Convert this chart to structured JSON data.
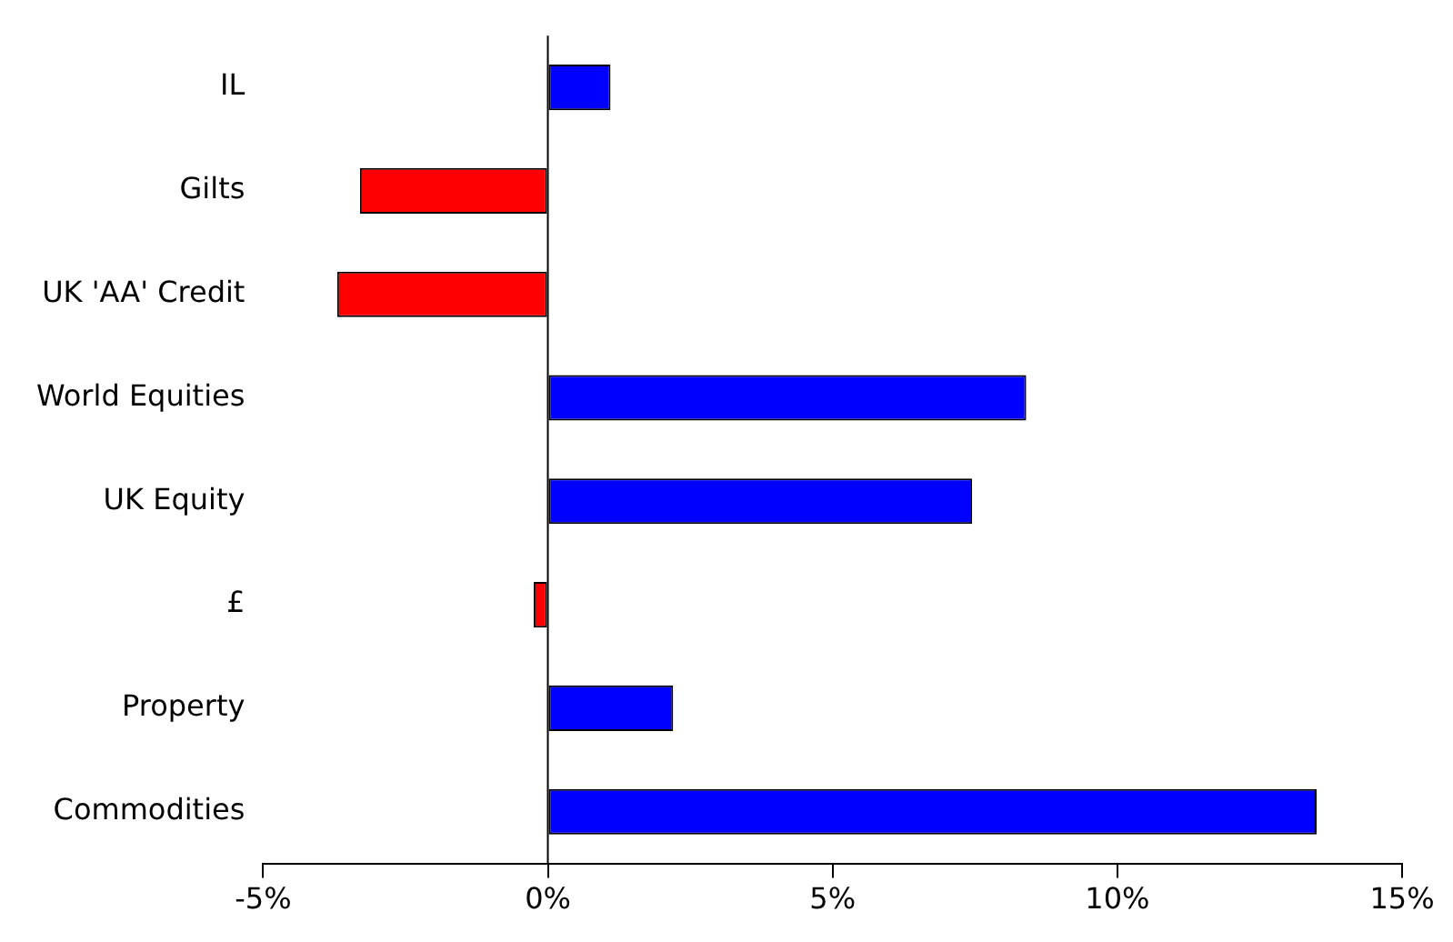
{
  "chart_data": {
    "type": "bar",
    "orientation": "horizontal",
    "categories": [
      "IL",
      "Gilts",
      "UK 'AA' Credit",
      "World Equities",
      "UK Equity",
      "£",
      "Property",
      "Commodities"
    ],
    "values": [
      1.1,
      -3.3,
      -3.7,
      8.4,
      7.45,
      -0.25,
      2.2,
      13.5
    ],
    "colors": [
      "#0000ff",
      "#ff0000",
      "#ff0000",
      "#0000ff",
      "#0000ff",
      "#ff0000",
      "#0000ff",
      "#0000ff"
    ],
    "xlim": [
      -5,
      15
    ],
    "xticks": [
      {
        "value": -5,
        "label": "-5%"
      },
      {
        "value": 0,
        "label": "0%"
      },
      {
        "value": 5,
        "label": "5%"
      },
      {
        "value": 10,
        "label": "10%"
      },
      {
        "value": 15,
        "label": "15%"
      }
    ],
    "ref_lines": [
      {
        "axis": "x",
        "value": 0,
        "color": "#000000"
      }
    ],
    "grid": false,
    "legend": false
  }
}
